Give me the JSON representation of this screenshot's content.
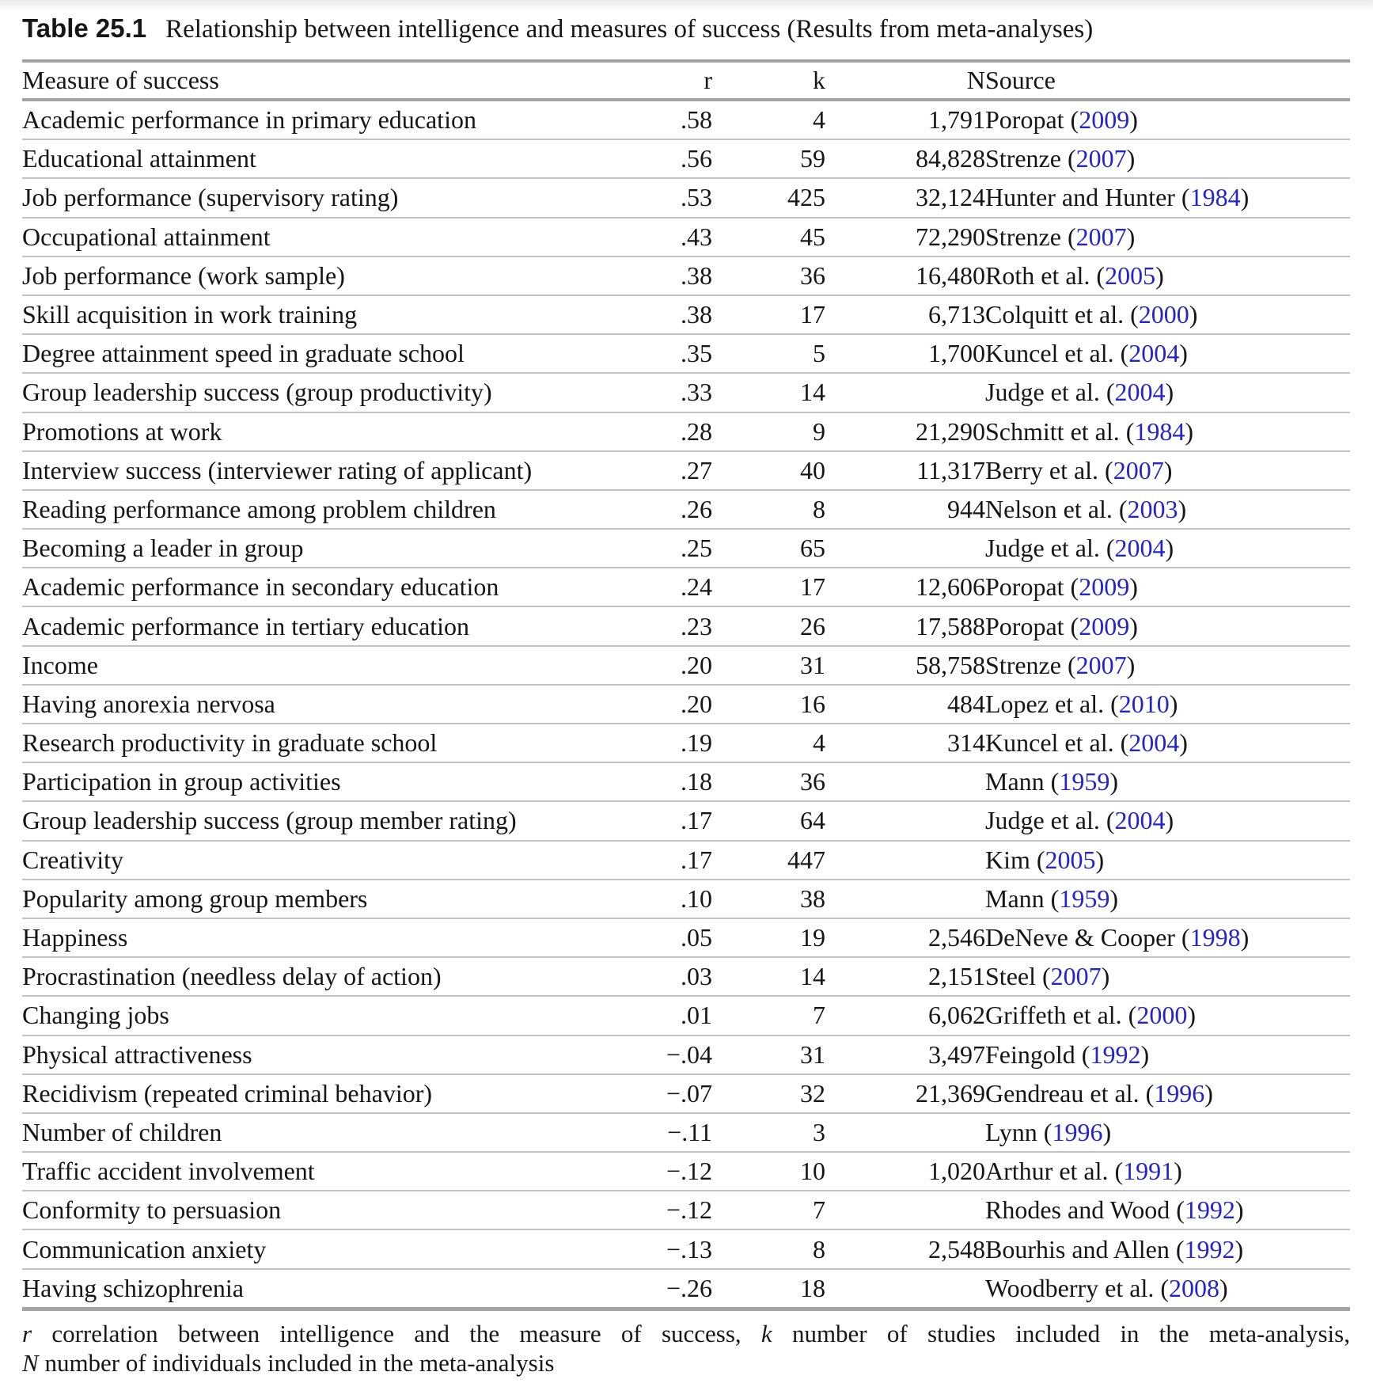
{
  "caption": {
    "label": "Table 25.1",
    "text": "Relationship between intelligence and measures of success (Results from meta-analyses)"
  },
  "columns": [
    "Measure of success",
    "r",
    "k",
    "N",
    "Source"
  ],
  "rows": [
    {
      "measure": "Academic performance in primary education",
      "r": ".58",
      "k": "4",
      "n": "1,791",
      "source": "Poropat",
      "year": "2009"
    },
    {
      "measure": "Educational attainment",
      "r": ".56",
      "k": "59",
      "n": "84,828",
      "source": "Strenze",
      "year": "2007"
    },
    {
      "measure": "Job performance (supervisory rating)",
      "r": ".53",
      "k": "425",
      "n": "32,124",
      "source": "Hunter and Hunter",
      "year": "1984"
    },
    {
      "measure": "Occupational attainment",
      "r": ".43",
      "k": "45",
      "n": "72,290",
      "source": "Strenze",
      "year": "2007"
    },
    {
      "measure": "Job performance (work sample)",
      "r": ".38",
      "k": "36",
      "n": "16,480",
      "source": "Roth et al.",
      "year": "2005"
    },
    {
      "measure": "Skill acquisition in work training",
      "r": ".38",
      "k": "17",
      "n": "6,713",
      "source": "Colquitt et al.",
      "year": "2000"
    },
    {
      "measure": "Degree attainment speed in graduate school",
      "r": ".35",
      "k": "5",
      "n": "1,700",
      "source": "Kuncel et al.",
      "year": "2004"
    },
    {
      "measure": "Group leadership success (group productivity)",
      "r": ".33",
      "k": "14",
      "n": "",
      "source": "Judge et al.",
      "year": "2004"
    },
    {
      "measure": "Promotions at work",
      "r": ".28",
      "k": "9",
      "n": "21,290",
      "source": "Schmitt et al.",
      "year": "1984"
    },
    {
      "measure": "Interview success (interviewer rating of applicant)",
      "r": ".27",
      "k": "40",
      "n": "11,317",
      "source": "Berry et al.",
      "year": "2007"
    },
    {
      "measure": "Reading performance among problem children",
      "r": ".26",
      "k": "8",
      "n": "944",
      "source": "Nelson et al.",
      "year": "2003"
    },
    {
      "measure": "Becoming a leader in group",
      "r": ".25",
      "k": "65",
      "n": "",
      "source": "Judge et al.",
      "year": "2004"
    },
    {
      "measure": "Academic performance in secondary education",
      "r": ".24",
      "k": "17",
      "n": "12,606",
      "source": "Poropat",
      "year": "2009"
    },
    {
      "measure": "Academic performance in tertiary education",
      "r": ".23",
      "k": "26",
      "n": "17,588",
      "source": "Poropat",
      "year": "2009"
    },
    {
      "measure": "Income",
      "r": ".20",
      "k": "31",
      "n": "58,758",
      "source": "Strenze",
      "year": "2007"
    },
    {
      "measure": "Having anorexia nervosa",
      "r": ".20",
      "k": "16",
      "n": "484",
      "source": "Lopez et al.",
      "year": "2010"
    },
    {
      "measure": "Research productivity in graduate school",
      "r": ".19",
      "k": "4",
      "n": "314",
      "source": "Kuncel et al.",
      "year": "2004"
    },
    {
      "measure": "Participation in group activities",
      "r": ".18",
      "k": "36",
      "n": "",
      "source": "Mann",
      "year": "1959"
    },
    {
      "measure": "Group leadership success (group member rating)",
      "r": ".17",
      "k": "64",
      "n": "",
      "source": "Judge et al.",
      "year": "2004"
    },
    {
      "measure": "Creativity",
      "r": ".17",
      "k": "447",
      "n": "",
      "source": "Kim",
      "year": "2005"
    },
    {
      "measure": "Popularity among group members",
      "r": ".10",
      "k": "38",
      "n": "",
      "source": "Mann",
      "year": "1959"
    },
    {
      "measure": "Happiness",
      "r": ".05",
      "k": "19",
      "n": "2,546",
      "source": "DeNeve & Cooper",
      "year": "1998"
    },
    {
      "measure": "Procrastination (needless delay of action)",
      "r": ".03",
      "k": "14",
      "n": "2,151",
      "source": "Steel",
      "year": "2007"
    },
    {
      "measure": "Changing jobs",
      "r": ".01",
      "k": "7",
      "n": "6,062",
      "source": "Griffeth et al.",
      "year": "2000"
    },
    {
      "measure": "Physical attractiveness",
      "r": "−.04",
      "k": "31",
      "n": "3,497",
      "source": "Feingold",
      "year": "1992"
    },
    {
      "measure": "Recidivism (repeated criminal behavior)",
      "r": "−.07",
      "k": "32",
      "n": "21,369",
      "source": "Gendreau et al.",
      "year": "1996"
    },
    {
      "measure": "Number of children",
      "r": "−.11",
      "k": "3",
      "n": "",
      "source": "Lynn",
      "year": "1996"
    },
    {
      "measure": "Traffic accident involvement",
      "r": "−.12",
      "k": "10",
      "n": "1,020",
      "source": "Arthur et al.",
      "year": "1991"
    },
    {
      "measure": "Conformity to persuasion",
      "r": "−.12",
      "k": "7",
      "n": "",
      "source": "Rhodes and Wood",
      "year": "1992"
    },
    {
      "measure": "Communication anxiety",
      "r": "−.13",
      "k": "8",
      "n": "2,548",
      "source": "Bourhis and Allen",
      "year": "1992"
    },
    {
      "measure": "Having schizophrenia",
      "r": "−.26",
      "k": "18",
      "n": "",
      "source": "Woodberry et al.",
      "year": "2008"
    }
  ],
  "footnote": {
    "line1": [
      {
        "i": true,
        "t": "r"
      },
      {
        "i": false,
        "t": " correlation between intelligence and the measure of success, "
      },
      {
        "i": true,
        "t": "k"
      },
      {
        "i": false,
        "t": " number of studies included in the meta-analysis,"
      }
    ],
    "line2": [
      {
        "i": true,
        "t": "N"
      },
      {
        "i": false,
        "t": " number of individuals included in the meta-analysis"
      }
    ]
  },
  "colors": {
    "link_blue": "#2424cc",
    "rule_thick": "#a3a3a3",
    "rule_thin": "#c2c2c2"
  }
}
